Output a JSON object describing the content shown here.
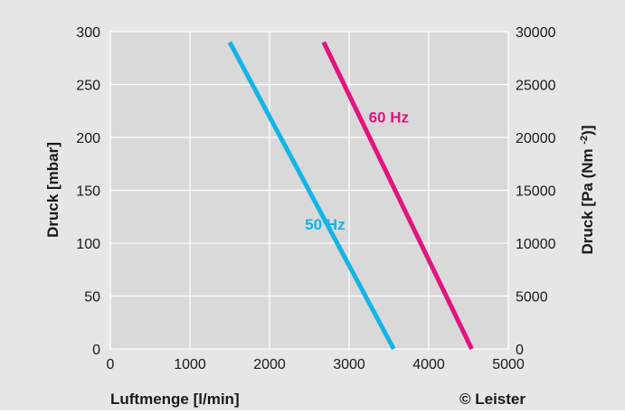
{
  "chart_data": {
    "type": "line",
    "title": "",
    "xlabel": "Luftmenge [l/min]",
    "ylabel": "Druck [mbar]",
    "y2label_main": "Druck [Pa (Nm ",
    "y2label_sup": "-2",
    "y2label_end": ")]",
    "copyright": "© Leister",
    "xlim": [
      0,
      5000
    ],
    "ylim": [
      0,
      300
    ],
    "y2lim": [
      0,
      30000
    ],
    "x_ticks": [
      "0",
      "1000",
      "2000",
      "3000",
      "4000",
      "5000"
    ],
    "y_ticks": [
      "0",
      "50",
      "100",
      "150",
      "200",
      "250",
      "300"
    ],
    "y2_ticks": [
      "0",
      "5000",
      "10000",
      "15000",
      "20000",
      "25000",
      "30000"
    ],
    "grid": true,
    "series": [
      {
        "name": "50 Hz",
        "color": "#14b4e6",
        "x": [
          1500,
          3560
        ],
        "y": [
          290,
          0
        ],
        "label_at": [
          2950,
          113
        ]
      },
      {
        "name": "60 Hz",
        "color": "#e2147e",
        "x": [
          2680,
          4540
        ],
        "y": [
          290,
          0
        ],
        "label_at": [
          3750,
          214
        ]
      }
    ]
  }
}
